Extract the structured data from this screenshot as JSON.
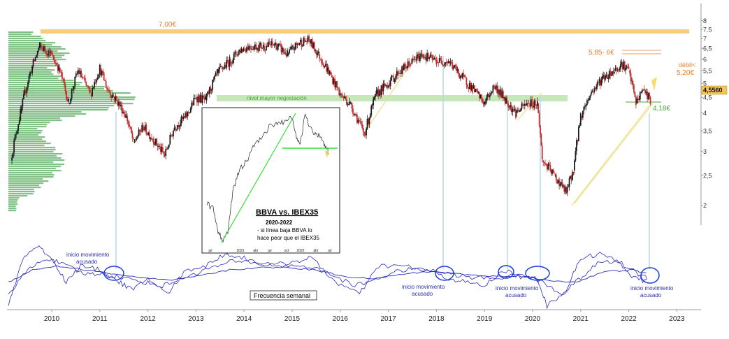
{
  "chart_data": {
    "type": "line",
    "x": {
      "ticks": [
        "2010",
        "2011",
        "2012",
        "2013",
        "2014",
        "2015",
        "2016",
        "2017",
        "2018",
        "2019",
        "2020",
        "2021",
        "2022",
        "2023"
      ]
    },
    "y": {
      "scale": "log",
      "ticks": [
        "8",
        "7.5",
        "7",
        "6,5",
        "6",
        "5,5",
        "5",
        "4,5",
        "4",
        "3,5",
        "3",
        "2,5",
        "2"
      ],
      "last_price_label": "4,5560"
    },
    "annotations": {
      "resistance": "7,00€",
      "range_high": "5,85- 6€",
      "weak": "débil<",
      "level_520": "5,20€",
      "support": "4,18€",
      "volume_zone": "nivel mayor negociación",
      "movement_start": "inicio movimiento acusado",
      "frequency": "Frecuencia semanal"
    },
    "inset": {
      "title": "BBVA vs. IBEX35",
      "subtitle": "2020-2022",
      "note_line1": "- si línea baja BBVA lo",
      "note_line2": "hace peor que el IBEX35",
      "x_ticks": [
        "jul",
        "2021",
        "abr",
        "jul",
        "oct",
        "2022",
        "abr",
        "jul"
      ]
    },
    "price_path": [
      [
        2009.15,
        2.8
      ],
      [
        2009.35,
        4.0
      ],
      [
        2009.55,
        5.4
      ],
      [
        2009.75,
        6.6
      ],
      [
        2009.95,
        6.3
      ],
      [
        2010.15,
        5.6
      ],
      [
        2010.35,
        4.3
      ],
      [
        2010.55,
        5.5
      ],
      [
        2010.8,
        4.6
      ],
      [
        2011.0,
        5.6
      ],
      [
        2011.15,
        4.8
      ],
      [
        2011.35,
        4.4
      ],
      [
        2011.55,
        3.9
      ],
      [
        2011.7,
        3.2
      ],
      [
        2011.9,
        3.6
      ],
      [
        2012.1,
        3.3
      ],
      [
        2012.35,
        2.9
      ],
      [
        2012.55,
        3.6
      ],
      [
        2012.8,
        3.9
      ],
      [
        2013.0,
        4.5
      ],
      [
        2013.2,
        4.4
      ],
      [
        2013.45,
        5.4
      ],
      [
        2013.7,
        5.9
      ],
      [
        2013.9,
        6.4
      ],
      [
        2014.1,
        6.6
      ],
      [
        2014.4,
        6.6
      ],
      [
        2014.65,
        6.7
      ],
      [
        2014.9,
        6.2
      ],
      [
        2015.15,
        6.8
      ],
      [
        2015.35,
        6.9
      ],
      [
        2015.55,
        6.2
      ],
      [
        2015.8,
        5.3
      ],
      [
        2016.0,
        4.6
      ],
      [
        2016.2,
        4.3
      ],
      [
        2016.5,
        3.4
      ],
      [
        2016.75,
        4.6
      ],
      [
        2017.0,
        5.0
      ],
      [
        2017.2,
        5.4
      ],
      [
        2017.45,
        5.8
      ],
      [
        2017.7,
        6.2
      ],
      [
        2018.0,
        5.9
      ],
      [
        2018.25,
        5.9
      ],
      [
        2018.5,
        5.3
      ],
      [
        2018.75,
        4.8
      ],
      [
        2019.0,
        4.3
      ],
      [
        2019.2,
        4.9
      ],
      [
        2019.45,
        4.4
      ],
      [
        2019.65,
        4.0
      ],
      [
        2019.9,
        4.3
      ],
      [
        2020.1,
        4.3
      ],
      [
        2020.2,
        2.8
      ],
      [
        2020.45,
        2.5
      ],
      [
        2020.7,
        2.2
      ],
      [
        2020.85,
        2.6
      ],
      [
        2021.0,
        3.9
      ],
      [
        2021.2,
        4.6
      ],
      [
        2021.45,
        5.2
      ],
      [
        2021.7,
        5.5
      ],
      [
        2021.85,
        5.8
      ],
      [
        2022.0,
        5.5
      ],
      [
        2022.15,
        4.3
      ],
      [
        2022.3,
        4.8
      ],
      [
        2022.45,
        4.4
      ]
    ],
    "oscillator": {
      "series": [
        {
          "values": [
            [
              2009.1,
              -40
            ],
            [
              2009.4,
              20
            ],
            [
              2009.7,
              35
            ],
            [
              2010.0,
              20
            ],
            [
              2010.3,
              -10
            ],
            [
              2010.6,
              10
            ],
            [
              2011.0,
              5
            ],
            [
              2011.4,
              -10
            ],
            [
              2011.7,
              -20
            ],
            [
              2012.0,
              -5
            ],
            [
              2012.4,
              -25
            ],
            [
              2012.8,
              5
            ],
            [
              2013.2,
              10
            ],
            [
              2013.6,
              25
            ],
            [
              2014.0,
              20
            ],
            [
              2014.5,
              10
            ],
            [
              2015.0,
              15
            ],
            [
              2015.4,
              20
            ],
            [
              2015.9,
              -10
            ],
            [
              2016.4,
              -25
            ],
            [
              2016.8,
              10
            ],
            [
              2017.3,
              10
            ],
            [
              2017.8,
              5
            ],
            [
              2018.2,
              -5
            ],
            [
              2018.6,
              -10
            ],
            [
              2019.0,
              -15
            ],
            [
              2019.4,
              5
            ],
            [
              2019.8,
              -5
            ],
            [
              2020.1,
              -5
            ],
            [
              2020.3,
              -40
            ],
            [
              2020.7,
              -20
            ],
            [
              2021.0,
              20
            ],
            [
              2021.4,
              25
            ],
            [
              2021.8,
              15
            ],
            [
              2022.1,
              -5
            ],
            [
              2022.4,
              -10
            ]
          ]
        },
        {
          "values": [
            [
              2009.1,
              -25
            ],
            [
              2009.5,
              5
            ],
            [
              2009.9,
              20
            ],
            [
              2010.3,
              10
            ],
            [
              2010.7,
              0
            ],
            [
              2011.1,
              0
            ],
            [
              2011.5,
              -5
            ],
            [
              2011.9,
              -10
            ],
            [
              2012.3,
              -15
            ],
            [
              2012.7,
              -5
            ],
            [
              2013.2,
              5
            ],
            [
              2013.7,
              15
            ],
            [
              2014.2,
              15
            ],
            [
              2014.8,
              10
            ],
            [
              2015.3,
              10
            ],
            [
              2015.8,
              0
            ],
            [
              2016.3,
              -15
            ],
            [
              2016.8,
              -5
            ],
            [
              2017.3,
              5
            ],
            [
              2017.8,
              5
            ],
            [
              2018.3,
              0
            ],
            [
              2018.8,
              -5
            ],
            [
              2019.3,
              -5
            ],
            [
              2019.8,
              0
            ],
            [
              2020.2,
              -10
            ],
            [
              2020.6,
              -25
            ],
            [
              2021.0,
              -5
            ],
            [
              2021.4,
              15
            ],
            [
              2021.8,
              15
            ],
            [
              2022.2,
              0
            ],
            [
              2022.4,
              -5
            ]
          ]
        },
        {
          "values": [
            [
              2009.1,
              -10
            ],
            [
              2009.6,
              5
            ],
            [
              2010.1,
              10
            ],
            [
              2010.7,
              5
            ],
            [
              2011.3,
              0
            ],
            [
              2011.9,
              -5
            ],
            [
              2012.5,
              -8
            ],
            [
              2013.1,
              -2
            ],
            [
              2013.7,
              5
            ],
            [
              2014.3,
              8
            ],
            [
              2014.9,
              8
            ],
            [
              2015.5,
              5
            ],
            [
              2016.1,
              -3
            ],
            [
              2016.7,
              -6
            ],
            [
              2017.3,
              0
            ],
            [
              2017.9,
              3
            ],
            [
              2018.5,
              0
            ],
            [
              2019.1,
              -3
            ],
            [
              2019.7,
              -2
            ],
            [
              2020.3,
              -8
            ],
            [
              2020.9,
              -10
            ],
            [
              2021.5,
              3
            ],
            [
              2022.1,
              5
            ],
            [
              2022.4,
              0
            ]
          ]
        }
      ]
    },
    "colors": {
      "resistance_band": "#f6cd7a",
      "volume_zone": "#c6e8b8",
      "volume_profile": "#3f9e45",
      "candle": "#1c1c1c",
      "candle_down": "#c23030",
      "trendline_price": "#ece08a",
      "inset_trendline": "#35df35",
      "accent_text": "#e87e2c",
      "green_text": "#45a83a",
      "osc_line": "#2a2ab8",
      "osc_circle": "#1a3fd8",
      "vertical_line": "#b9d6ea",
      "price_badge": "#f4c55a"
    }
  }
}
